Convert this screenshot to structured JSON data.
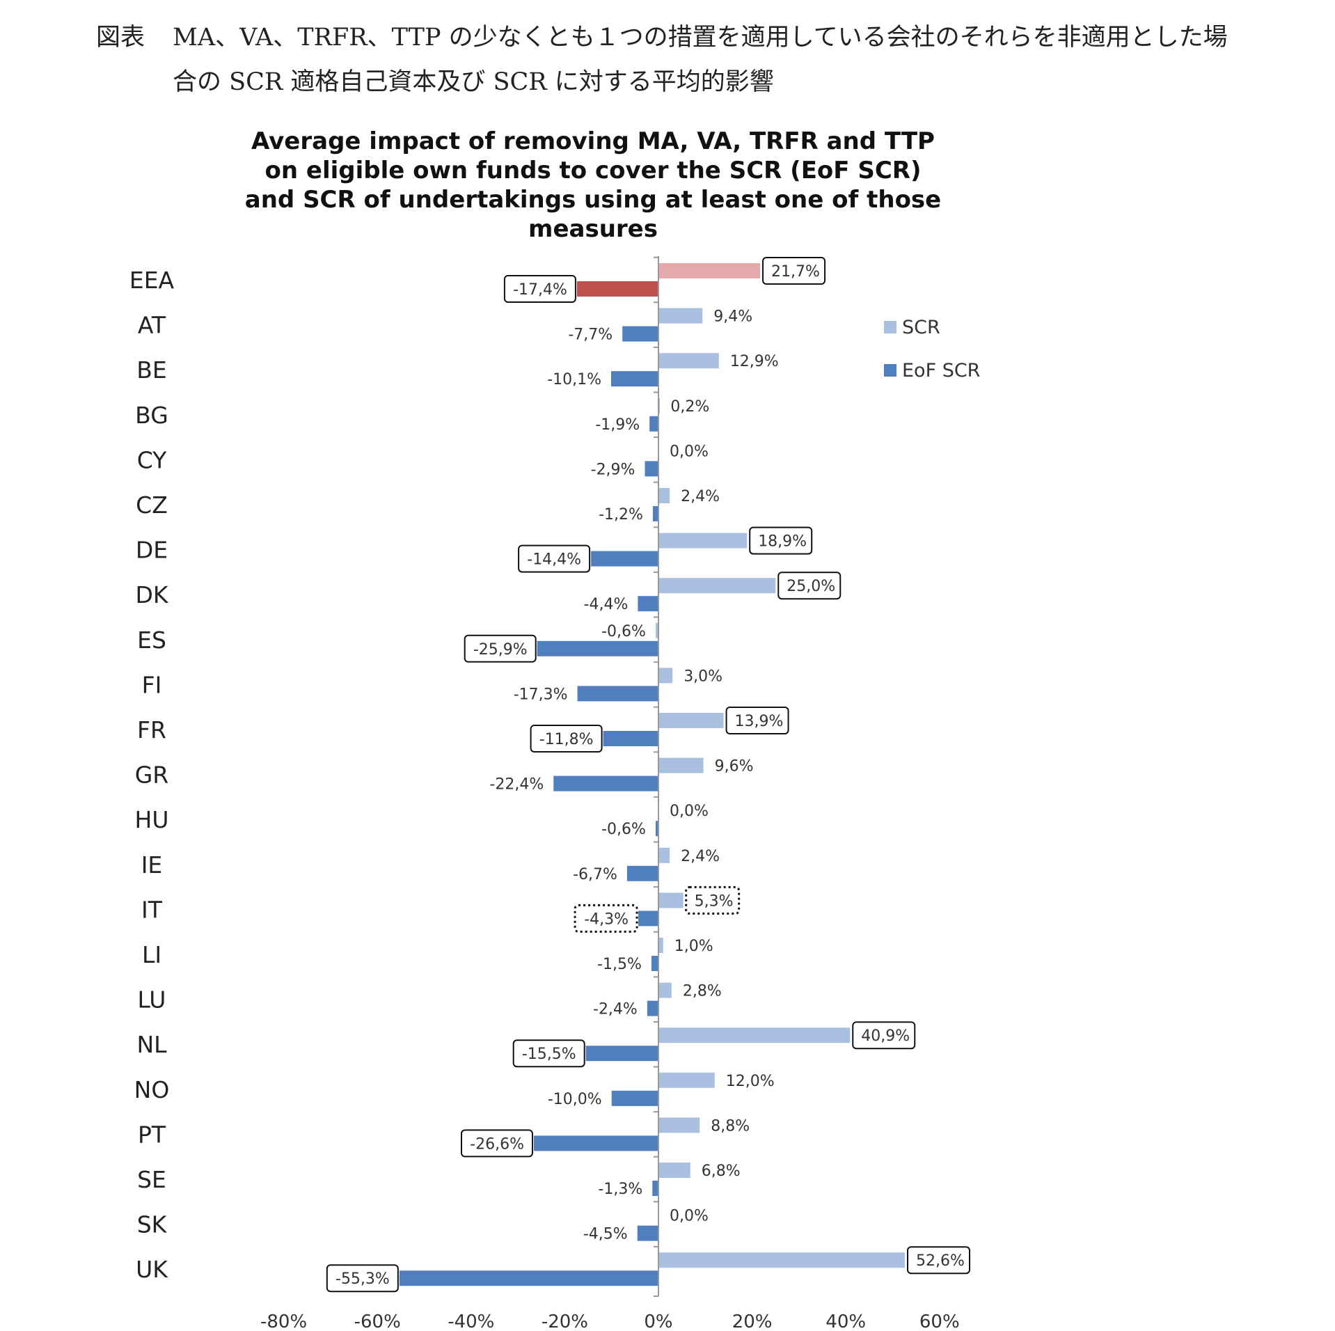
{
  "caption": {
    "label": "図表",
    "line1": "MA、VA、TRFR、TTP の少なくとも１つの措置を適用している会社のそれらを非適用とした場",
    "line2": "合の SCR 適格自己資本及び SCR に対する平均的影響"
  },
  "chart_data": {
    "type": "bar",
    "orientation": "horizontal",
    "title": "Average impact of removing MA, VA, TRFR and TTP on eligible own funds to cover the SCR (EoF SCR) and SCR of undertakings using at least one of those measures",
    "title_lines": [
      "Average impact of removing MA, VA, TRFR and TTP",
      "on eligible own funds to cover the SCR (EoF SCR)",
      "and SCR of undertakings using at least one of those",
      "measures"
    ],
    "categories": [
      "EEA",
      "AT",
      "BE",
      "BG",
      "CY",
      "CZ",
      "DE",
      "DK",
      "ES",
      "FI",
      "FR",
      "GR",
      "HU",
      "IE",
      "IT",
      "LI",
      "LU",
      "NL",
      "NO",
      "PT",
      "SE",
      "SK",
      "UK"
    ],
    "series": [
      {
        "name": "SCR",
        "color": "#a9c0e0",
        "highlight_color": "#e3a9ab",
        "values": [
          21.7,
          9.4,
          12.9,
          0.2,
          0.0,
          2.4,
          18.9,
          25.0,
          -0.6,
          3.0,
          13.9,
          9.6,
          0.0,
          2.4,
          5.3,
          1.0,
          2.8,
          40.9,
          12.0,
          8.8,
          6.8,
          0.0,
          52.6
        ],
        "labels": [
          "21,7%",
          "9,4%",
          "12,9%",
          "0,2%",
          "0,0%",
          "2,4%",
          "18,9%",
          "25,0%",
          "-0,6%",
          "3,0%",
          "13,9%",
          "9,6%",
          "0,0%",
          "2,4%",
          "5,3%",
          "1,0%",
          "2,8%",
          "40,9%",
          "12,0%",
          "8,8%",
          "6,8%",
          "0,0%",
          "52,6%"
        ]
      },
      {
        "name": "EoF SCR",
        "color": "#4f7fbf",
        "highlight_color": "#c0504d",
        "values": [
          -17.4,
          -7.7,
          -10.1,
          -1.9,
          -2.9,
          -1.2,
          -14.4,
          -4.4,
          -25.9,
          -17.3,
          -11.8,
          -22.4,
          -0.6,
          -6.7,
          -4.3,
          -1.5,
          -2.4,
          -15.5,
          -10.0,
          -26.6,
          -1.3,
          -4.5,
          -55.3
        ],
        "labels": [
          "-17,4%",
          "-7,7%",
          "-10,1%",
          "-1,9%",
          "-2,9%",
          "-1,2%",
          "-14,4%",
          "-4,4%",
          "-25,9%",
          "-17,3%",
          "-11,8%",
          "-22,4%",
          "-0,6%",
          "-6,7%",
          "-4,3%",
          "-1,5%",
          "-2,4%",
          "-15,5%",
          "-10,0%",
          "-26,6%",
          "-1,3%",
          "-4,5%",
          "-55,3%"
        ]
      }
    ],
    "highlighted_category": "EEA",
    "boxed_solid": {
      "SCR": [
        "EEA",
        "DE",
        "DK",
        "FR",
        "NL",
        "UK"
      ],
      "EoF SCR": [
        "EEA",
        "DE",
        "ES",
        "FR",
        "NL",
        "PT",
        "UK"
      ]
    },
    "boxed_dotted": {
      "SCR": [
        "IT"
      ],
      "EoF SCR": [
        "IT"
      ]
    },
    "xlim": [
      -80,
      60
    ],
    "xticks": [
      -80,
      -60,
      -40,
      -20,
      0,
      20,
      40,
      60
    ],
    "xtick_labels": [
      "-80%",
      "-60%",
      "-40%",
      "-20%",
      "0%",
      "20%",
      "40%",
      "60%"
    ],
    "legend": {
      "position": "right",
      "entries": [
        "SCR",
        "EoF SCR"
      ]
    },
    "grid": false
  }
}
